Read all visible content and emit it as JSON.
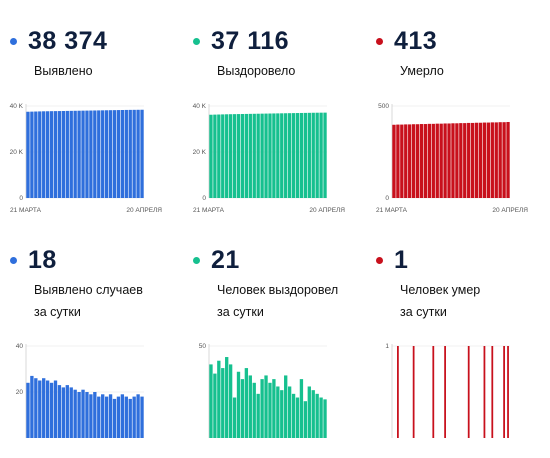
{
  "panels": [
    {
      "key": "p1",
      "value": "38 374",
      "caption": "Выявлено",
      "color": "#2f6fdc",
      "ytop": "40 K",
      "ymid": "20 K",
      "yzero": "0",
      "xstart": "21 МАРТА",
      "xend": "20 АПРЕЛЯ"
    },
    {
      "key": "p2",
      "value": "37 116",
      "caption": "Выздоровело",
      "color": "#16c08f",
      "ytop": "40 K",
      "ymid": "20 K",
      "yzero": "0",
      "xstart": "21 МАРТА",
      "xend": "20 АПРЕЛЯ"
    },
    {
      "key": "p3",
      "value": "413",
      "caption": "Умерло",
      "color": "#c8101c",
      "ytop": "500",
      "ymid": "",
      "yzero": "0",
      "xstart": "21 МАРТА",
      "xend": "20 АПРЕЛЯ"
    },
    {
      "key": "p4",
      "value": "18",
      "caption": "Выявлено случаев\nза сутки",
      "color": "#2f6fdc",
      "ytop": "40",
      "ymid": "20",
      "yzero": "",
      "xstart": "",
      "xend": ""
    },
    {
      "key": "p5",
      "value": "21",
      "caption": "Человек выздоровел\nза сутки",
      "color": "#16c08f",
      "ytop": "50",
      "ymid": "",
      "yzero": "",
      "xstart": "",
      "xend": ""
    },
    {
      "key": "p6",
      "value": "1",
      "caption": "Человек умер\nза сутки",
      "color": "#c8101c",
      "ytop": "1",
      "ymid": "",
      "yzero": "",
      "xstart": "",
      "xend": ""
    }
  ],
  "chart_data": [
    {
      "type": "bar",
      "series": [
        {
          "values": [
            37500,
            37550,
            37600,
            37650,
            37700,
            37720,
            37750,
            37780,
            37800,
            37830,
            37860,
            37890,
            37920,
            37950,
            37980,
            38000,
            38030,
            38060,
            38090,
            38120,
            38150,
            38180,
            38200,
            38230,
            38260,
            38290,
            38310,
            38330,
            38350,
            38374
          ]
        }
      ],
      "ylim": [
        0,
        40000
      ],
      "y_ticks": [
        0,
        20000,
        40000
      ]
    },
    {
      "type": "bar",
      "series": [
        {
          "values": [
            36200,
            36250,
            36300,
            36350,
            36400,
            36430,
            36460,
            36490,
            36520,
            36550,
            36580,
            36610,
            36640,
            36670,
            36700,
            36730,
            36760,
            36790,
            36820,
            36850,
            36880,
            36910,
            36940,
            36970,
            37000,
            37030,
            37060,
            37080,
            37100,
            37116
          ]
        }
      ],
      "ylim": [
        0,
        40000
      ],
      "y_ticks": [
        0,
        20000,
        40000
      ]
    },
    {
      "type": "bar",
      "series": [
        {
          "values": [
            398,
            399,
            399,
            400,
            400,
            401,
            401,
            402,
            402,
            403,
            403,
            404,
            404,
            405,
            405,
            406,
            406,
            407,
            407,
            408,
            408,
            409,
            409,
            410,
            410,
            411,
            411,
            412,
            412,
            413
          ]
        }
      ],
      "ylim": [
        0,
        500
      ],
      "y_ticks": [
        0,
        500
      ]
    },
    {
      "type": "bar",
      "series": [
        {
          "values": [
            24,
            27,
            26,
            25,
            26,
            25,
            24,
            25,
            23,
            22,
            23,
            22,
            21,
            20,
            21,
            20,
            19,
            20,
            18,
            19,
            18,
            19,
            17,
            18,
            19,
            18,
            17,
            18,
            19,
            18
          ]
        }
      ],
      "ylim": [
        0,
        40
      ],
      "y_ticks": [
        20,
        40
      ]
    },
    {
      "type": "bar",
      "series": [
        {
          "values": [
            40,
            35,
            42,
            38,
            44,
            40,
            22,
            36,
            32,
            38,
            34,
            30,
            24,
            32,
            34,
            30,
            32,
            28,
            26,
            34,
            28,
            24,
            22,
            32,
            20,
            28,
            26,
            24,
            22,
            21
          ]
        }
      ],
      "ylim": [
        0,
        50
      ],
      "y_ticks": [
        50
      ]
    },
    {
      "type": "bar",
      "series": [
        {
          "values": [
            0,
            1,
            0,
            0,
            0,
            1,
            0,
            0,
            0,
            0,
            1,
            0,
            0,
            1,
            0,
            0,
            0,
            0,
            0,
            1,
            0,
            0,
            0,
            1,
            0,
            1,
            0,
            0,
            1,
            1
          ]
        }
      ],
      "ylim": [
        0,
        1
      ],
      "y_ticks": [
        1
      ]
    }
  ]
}
